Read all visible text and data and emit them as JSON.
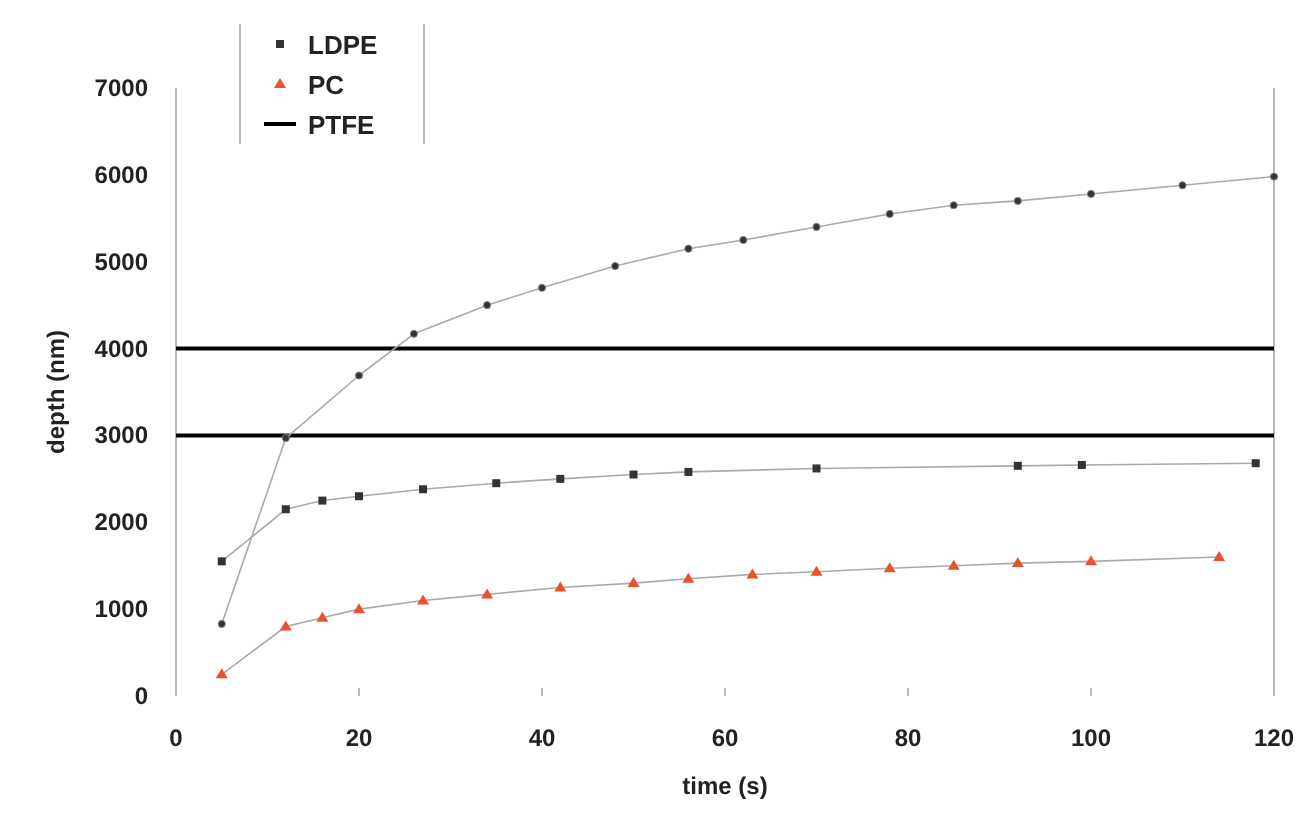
{
  "chart_data": {
    "type": "line",
    "xlabel": "time (s)",
    "ylabel": "depth (nm)",
    "xlim": [
      0,
      120
    ],
    "xticks": [
      0,
      20,
      40,
      60,
      80,
      100,
      120
    ],
    "ylim": [
      0,
      7000
    ],
    "yticks": [
      0,
      1000,
      2000,
      3000,
      4000,
      5000,
      6000,
      7000
    ],
    "grid": false,
    "legend": "top left",
    "series": [
      {
        "name": "LDPE",
        "color": "#333333",
        "marker": "square",
        "x": [
          5,
          12,
          16,
          20,
          27,
          35,
          42,
          50,
          56,
          70,
          92,
          99,
          118
        ],
        "values": [
          1550,
          2150,
          2250,
          2300,
          2380,
          2450,
          2500,
          2550,
          2580,
          2620,
          2650,
          2660,
          2680
        ]
      },
      {
        "name": "PC",
        "color": "#e8532e",
        "marker": "triangle",
        "x": [
          5,
          12,
          16,
          20,
          27,
          34,
          42,
          50,
          56,
          63,
          70,
          78,
          85,
          92,
          100,
          114
        ],
        "values": [
          250,
          800,
          900,
          1000,
          1100,
          1170,
          1250,
          1300,
          1350,
          1400,
          1430,
          1470,
          1500,
          1530,
          1550,
          1600
        ]
      },
      {
        "name": "PTFE",
        "color": "#000000",
        "marker": "none",
        "x": [
          0,
          120
        ],
        "values": [
          4000,
          4000
        ]
      },
      {
        "color": "#000000",
        "marker": "none",
        "x": [
          0,
          120
        ],
        "values": [
          3000,
          3000
        ]
      },
      {
        "color": "#888888",
        "marker": "circle",
        "x": [
          5,
          12,
          20,
          26,
          34,
          40,
          48,
          56,
          62,
          70,
          78,
          85,
          92,
          100,
          110,
          120
        ],
        "values": [
          830,
          2970,
          3690,
          4170,
          4500,
          4700,
          4950,
          5150,
          5250,
          5400,
          5550,
          5650,
          5700,
          5780,
          5880,
          5980
        ]
      }
    ]
  }
}
